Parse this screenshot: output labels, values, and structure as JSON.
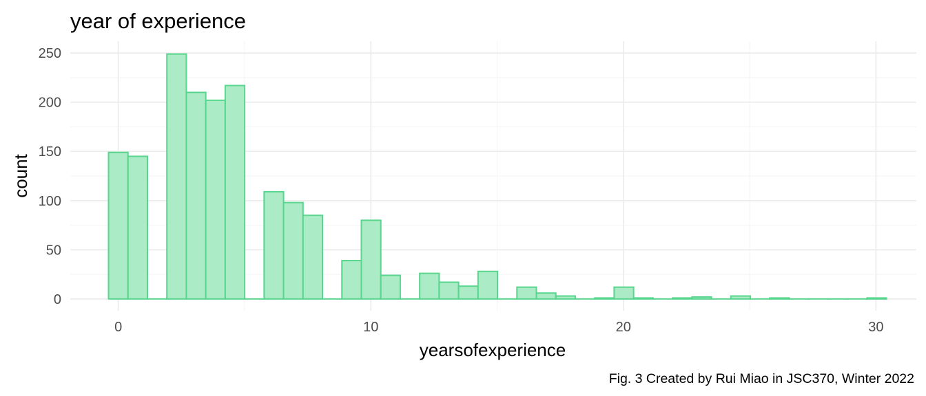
{
  "chart_data": {
    "type": "bar",
    "subtype": "histogram",
    "title": "year of experience",
    "xlabel": "yearsofexperience",
    "ylabel": "count",
    "caption": "Fig. 3 Created by Rui Miao in JSC370, Winter 2022",
    "bin_width": 0.77,
    "bin_centers": [
      0,
      0.77,
      1.54,
      2.31,
      3.08,
      3.85,
      4.62,
      5.39,
      6.16,
      6.93,
      7.7,
      8.47,
      9.24,
      10.01,
      10.78,
      11.55,
      12.32,
      13.09,
      13.86,
      14.63,
      15.4,
      16.17,
      16.94,
      17.71,
      18.48,
      19.25,
      20.02,
      20.79,
      21.56,
      22.33,
      23.1,
      23.87,
      24.64,
      25.41,
      26.18,
      26.95,
      27.72,
      28.49,
      29.26,
      30.03
    ],
    "values": [
      149,
      145,
      0,
      249,
      210,
      202,
      217,
      0,
      109,
      98,
      85,
      0,
      39,
      80,
      24,
      0,
      26,
      17,
      13,
      28,
      0,
      12,
      6,
      3,
      0,
      1,
      12,
      1,
      0,
      1,
      2,
      0,
      3,
      0,
      1,
      0,
      0,
      0,
      0,
      1
    ],
    "xlim": [
      -1.9,
      31.6
    ],
    "ylim": [
      -12,
      262
    ],
    "x_ticks": [
      0,
      10,
      20,
      30
    ],
    "y_ticks": [
      0,
      50,
      100,
      150,
      200,
      250
    ],
    "x_tick_labels": [
      "0",
      "10",
      "20",
      "30"
    ],
    "y_tick_labels": [
      "0",
      "50",
      "100",
      "150",
      "200",
      "250"
    ],
    "fill_color": "#abebc6",
    "outline_color": "#58d68d",
    "grid": true,
    "legend": "none"
  }
}
